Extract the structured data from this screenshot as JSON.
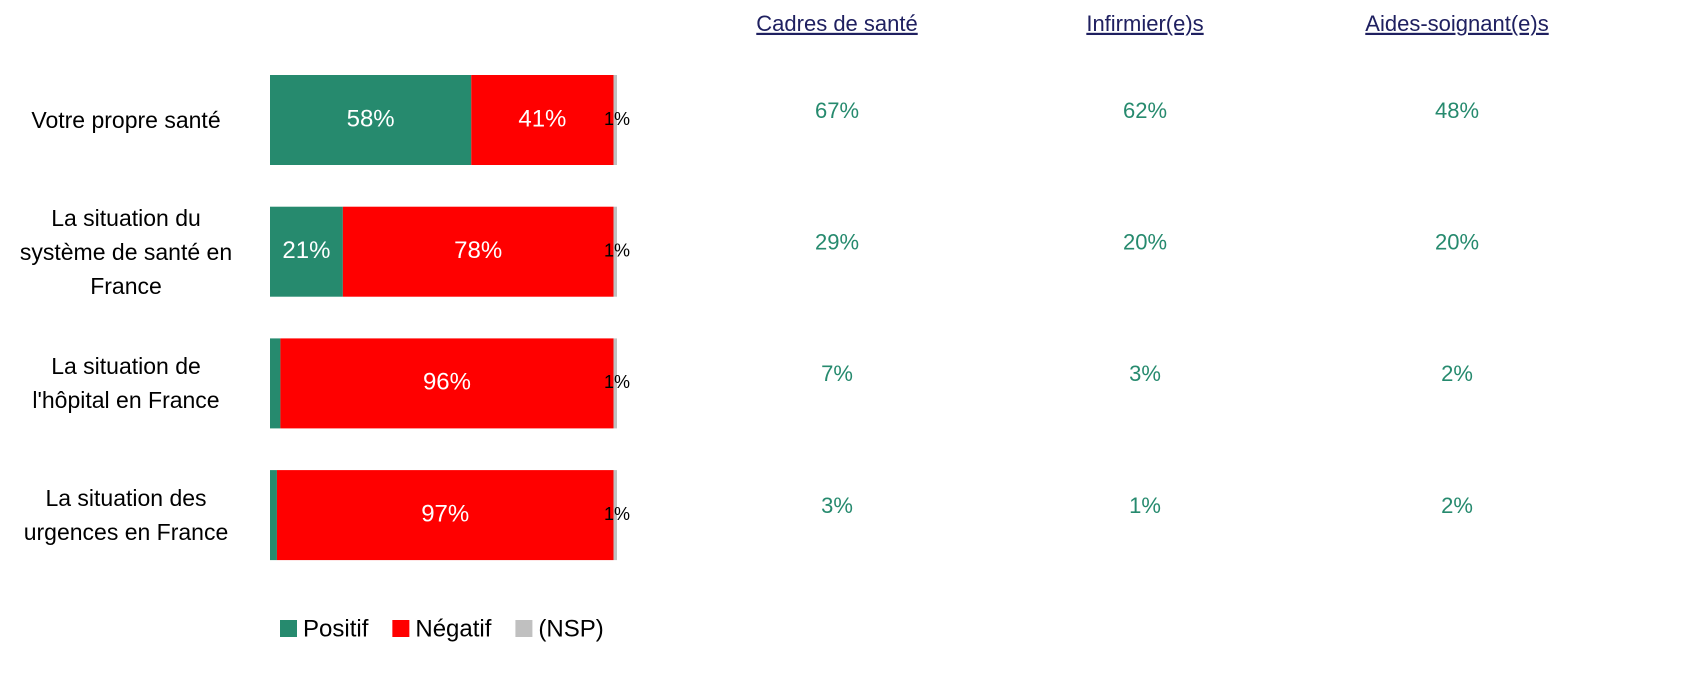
{
  "chart_data": {
    "type": "stacked-bar-h",
    "categories": [
      "Votre propre santé",
      "La situation du système de santé en France",
      "La situation de l'hôpital en France",
      "La situation des urgences en France"
    ],
    "series": [
      {
        "name": "Positif",
        "color": "#268a6e",
        "values": [
          58,
          21,
          3,
          2
        ],
        "value_labels": [
          "58%",
          "21%",
          "3%",
          "2%"
        ]
      },
      {
        "name": "Négatif",
        "color": "#ff0000",
        "values": [
          41,
          78,
          96,
          97
        ],
        "value_labels": [
          "41%",
          "78%",
          "96%",
          "97%"
        ]
      },
      {
        "name": "(NSP)",
        "color": "#c0c0c0",
        "values": [
          1,
          1,
          1,
          1
        ],
        "value_labels": [
          "1%",
          "1%",
          "1%",
          "1%"
        ]
      }
    ],
    "xlim": [
      0,
      100
    ],
    "columns": [
      {
        "name": "Cadres de santé",
        "values": [
          67,
          29,
          7,
          3
        ],
        "value_labels": [
          "67%",
          "29%",
          "7%",
          "3%"
        ]
      },
      {
        "name": "Infirmier(e)s",
        "values": [
          62,
          20,
          3,
          1
        ],
        "value_labels": [
          "62%",
          "20%",
          "3%",
          "1%"
        ]
      },
      {
        "name": "Aides-soignant(e)s",
        "values": [
          48,
          20,
          2,
          2
        ],
        "value_labels": [
          "48%",
          "20%",
          "2%",
          "2%"
        ]
      }
    ],
    "column_color": "#268a6e",
    "legend": "bottom"
  }
}
